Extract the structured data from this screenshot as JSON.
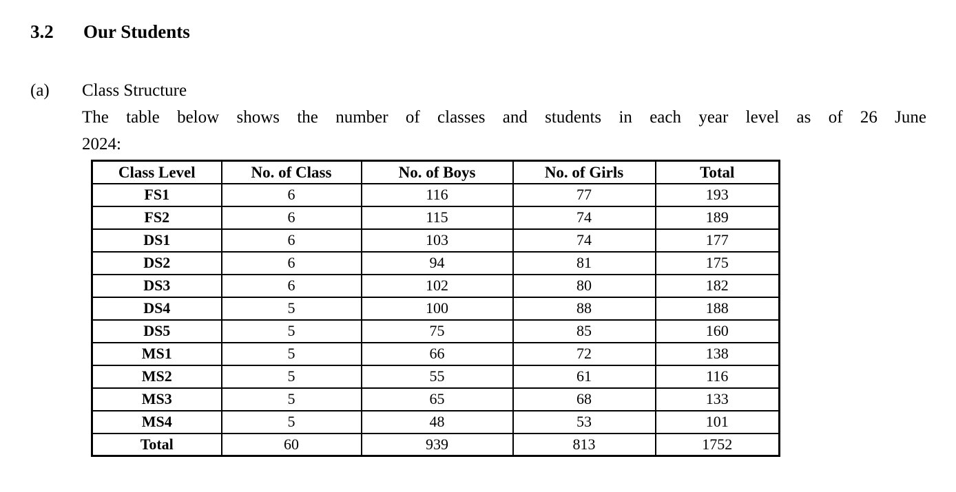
{
  "document": {
    "section": {
      "number": "3.2",
      "title": "Our Students"
    },
    "item": {
      "label": "(a)",
      "title": "Class Structure"
    },
    "paragraph": {
      "line1": "The table below shows the number of classes and students in each year level as of 26 June",
      "line2": "2024:"
    }
  },
  "chart_data": {
    "type": "table",
    "title": "Class Structure as of 26 June 2024",
    "columns": [
      "Class Level",
      "No. of Class",
      "No. of Boys",
      "No. of Girls",
      "Total"
    ],
    "rows": [
      [
        "FS1",
        "6",
        "116",
        "77",
        "193"
      ],
      [
        "FS2",
        "6",
        "115",
        "74",
        "189"
      ],
      [
        "DS1",
        "6",
        "103",
        "74",
        "177"
      ],
      [
        "DS2",
        "6",
        "94",
        "81",
        "175"
      ],
      [
        "DS3",
        "6",
        "102",
        "80",
        "182"
      ],
      [
        "DS4",
        "5",
        "100",
        "88",
        "188"
      ],
      [
        "DS5",
        "5",
        "75",
        "85",
        "160"
      ],
      [
        "MS1",
        "5",
        "66",
        "72",
        "138"
      ],
      [
        "MS2",
        "5",
        "55",
        "61",
        "116"
      ],
      [
        "MS3",
        "5",
        "65",
        "68",
        "133"
      ],
      [
        "MS4",
        "5",
        "48",
        "53",
        "101"
      ],
      [
        "Total",
        "60",
        "939",
        "813",
        "1752"
      ]
    ],
    "totals": {
      "classes": 60,
      "boys": 939,
      "girls": 813,
      "students": 1752
    },
    "text_color": "#000000",
    "background_color": "#ffffff"
  }
}
